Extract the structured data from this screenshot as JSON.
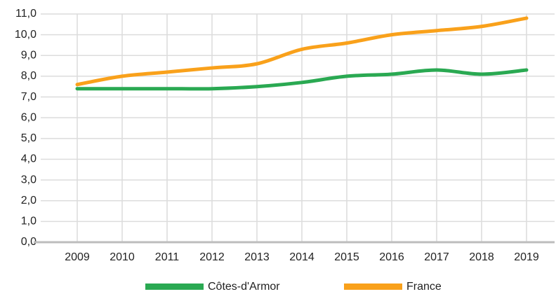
{
  "chart_data": {
    "type": "line",
    "x": [
      2009,
      2010,
      2011,
      2012,
      2013,
      2014,
      2015,
      2016,
      2017,
      2018,
      2019
    ],
    "series": [
      {
        "name": "Côtes-d'Armor",
        "color": "#2aa952",
        "values": [
          7.4,
          7.4,
          7.4,
          7.4,
          7.5,
          7.7,
          8.0,
          8.1,
          8.3,
          8.1,
          8.3
        ]
      },
      {
        "name": "France",
        "color": "#f9a11b",
        "values": [
          7.6,
          8.0,
          8.2,
          8.4,
          8.6,
          9.3,
          9.6,
          10.0,
          10.2,
          10.4,
          10.8
        ]
      }
    ],
    "xlim": [
      2009,
      2019
    ],
    "ylim": [
      0,
      11
    ],
    "yticks": [
      {
        "value": 0,
        "label": "0,0"
      },
      {
        "value": 1,
        "label": "1,0"
      },
      {
        "value": 2,
        "label": "2,0"
      },
      {
        "value": 3,
        "label": "3,0"
      },
      {
        "value": 4,
        "label": "4,0"
      },
      {
        "value": 5,
        "label": "5,0"
      },
      {
        "value": 6,
        "label": "6,0"
      },
      {
        "value": 7,
        "label": "7,0"
      },
      {
        "value": 8,
        "label": "8,0"
      },
      {
        "value": 9,
        "label": "9,0"
      },
      {
        "value": 10,
        "label": "10,0"
      },
      {
        "value": 11,
        "label": "11,0"
      }
    ],
    "grid": true,
    "legend": "bottom"
  }
}
